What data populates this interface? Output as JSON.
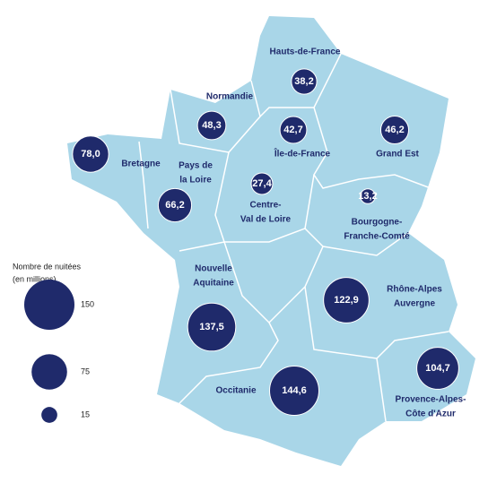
{
  "regions": [
    {
      "name": [
        "Hauts-de-France"
      ],
      "value": 38.2,
      "value_label": "38,2"
    },
    {
      "name": [
        "Normandie"
      ],
      "value": 48.3,
      "value_label": "48,3"
    },
    {
      "name": [
        "Île-de-France"
      ],
      "value": 42.7,
      "value_label": "42,7"
    },
    {
      "name": [
        "Grand Est"
      ],
      "value": 46.2,
      "value_label": "46,2"
    },
    {
      "name": [
        "Bretagne"
      ],
      "value": 78.0,
      "value_label": "78,0"
    },
    {
      "name": [
        "Pays de",
        "la Loire"
      ],
      "value": 66.2,
      "value_label": "66,2"
    },
    {
      "name": [
        "Centre-",
        "Val de Loire"
      ],
      "value": 27.4,
      "value_label": "27,4"
    },
    {
      "name": [
        "Bourgogne-",
        "Franche-Comté"
      ],
      "value": 13.2,
      "value_label": "13,2"
    },
    {
      "name": [
        "Nouvelle",
        "Aquitaine"
      ],
      "value": 137.5,
      "value_label": "137,5"
    },
    {
      "name": [
        "Rhône-Alpes",
        "Auvergne"
      ],
      "value": 122.9,
      "value_label": "122,9"
    },
    {
      "name": [
        "Occitanie"
      ],
      "value": 144.6,
      "value_label": "144,6"
    },
    {
      "name": [
        "Provence-Alpes-",
        "Côte d'Azur"
      ],
      "value": 104.7,
      "value_label": "104,7"
    }
  ],
  "legend": {
    "title": [
      "Nombre de nuitées",
      "(en millions)"
    ],
    "sizes": [
      150,
      75,
      15
    ]
  }
}
